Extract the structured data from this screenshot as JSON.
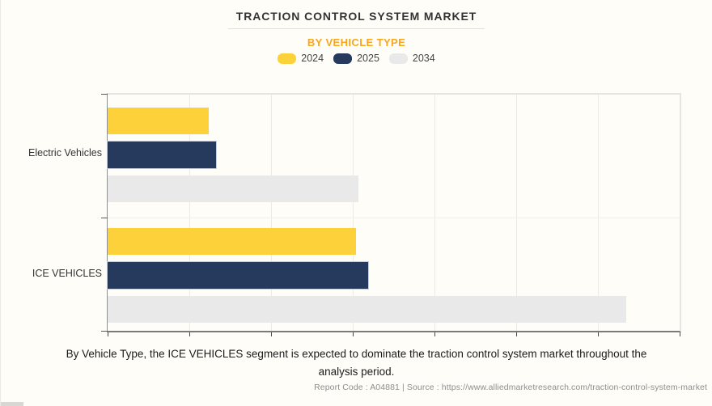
{
  "page": {
    "background": "#FFFDF8",
    "caption_line1": "By Vehicle Type, the ICE VEHICLES segment is expected to dominate the traction control system market throughout the",
    "caption_line2": "analysis period.",
    "footer_text": "Report Code : A04881  |  Source : https://www.alliedmarketresearch.com/traction-control-system-market"
  },
  "chart_data": {
    "type": "bar",
    "orientation": "horizontal",
    "title": "TRACTION CONTROL SYSTEM MARKET",
    "subtitle": "BY VEHICLE TYPE",
    "subtitle_color": "#F9A61C",
    "categories": [
      "Electric Vehicles",
      "ICE VEHICLES"
    ],
    "series": [
      {
        "name": "2024",
        "color": "#FDD13A",
        "values": [
          17.7,
          43.4
        ]
      },
      {
        "name": "2025",
        "color": "#253A5C",
        "values": [
          19.0,
          45.6
        ]
      },
      {
        "name": "2034",
        "color": "#E9E9E9",
        "values": [
          43.9,
          90.7
        ]
      }
    ],
    "value_note": "x-axis has no numeric tick labels; values given as percent of full axis length",
    "xlim": [
      0,
      100
    ],
    "gridline_count": 7,
    "grid": "vertical-on",
    "legend_position": "top-center"
  }
}
